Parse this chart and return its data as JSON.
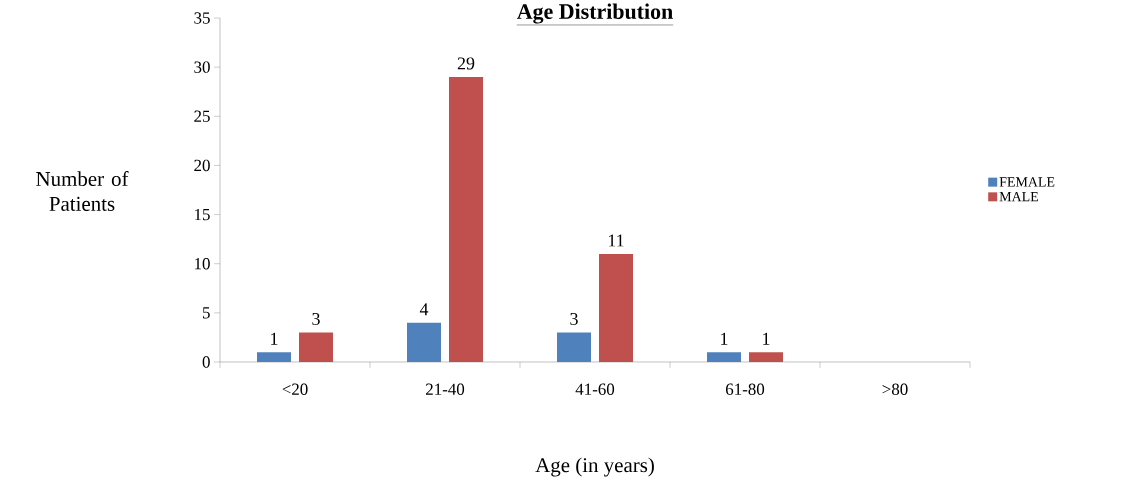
{
  "chart_data": {
    "type": "bar",
    "title": "Age Distribution",
    "xlabel": "Age (in years)",
    "ylabel": "Number of Patients",
    "categories": [
      "<20",
      "21-40",
      "41-60",
      "61-80",
      ">80"
    ],
    "series": [
      {
        "name": "FEMALE",
        "color": "#4f81bd",
        "values": [
          1,
          4,
          3,
          1,
          null
        ],
        "value_labels": [
          "1",
          "4",
          "3",
          "1",
          null
        ]
      },
      {
        "name": "MALE",
        "color": "#c0504d",
        "values": [
          3,
          29,
          11,
          1,
          null
        ],
        "value_labels": [
          "3",
          "29",
          "11",
          "1",
          null
        ]
      }
    ],
    "ylim": [
      0,
      35
    ],
    "yticks": [
      0,
      5,
      10,
      15,
      20,
      25,
      30,
      35
    ],
    "grid": false,
    "legend": "right"
  }
}
